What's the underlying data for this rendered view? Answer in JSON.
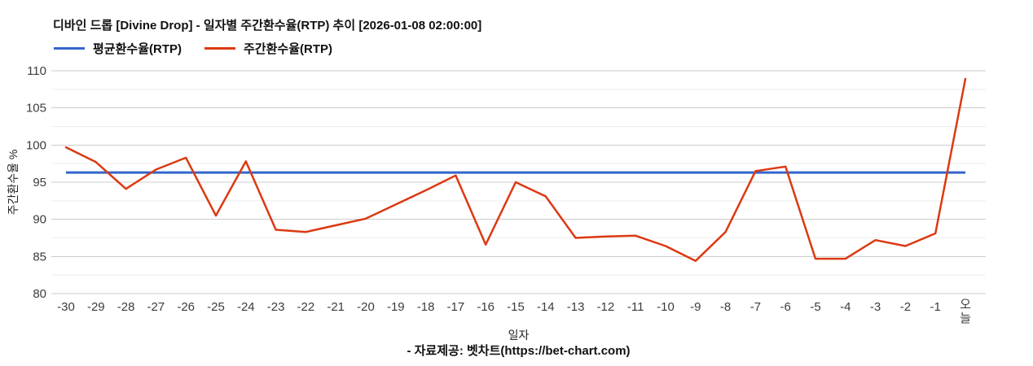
{
  "header": {
    "title": "디바인 드롭 [Divine Drop] - 일자별 주간환수율(RTP) 추이 [2026-01-08 02:00:00]"
  },
  "legend": {
    "items": [
      {
        "label": "평균환수율(RTP)",
        "color": "#3366cc"
      },
      {
        "label": "주간환수율(RTP)",
        "color": "#dc3912"
      }
    ]
  },
  "axes": {
    "y_title": "주간환수율 %",
    "x_title": "일자"
  },
  "footer": {
    "credit": "- 자료제공: 벳차트(https://bet-chart.com)"
  },
  "colors": {
    "average_line": "#3366cc",
    "weekly_line": "#dc3912",
    "grid_major": "#cccccc",
    "grid_minor": "#ededed",
    "tick_text": "#3c3c3c",
    "title_text": "#111111"
  },
  "chart_data": {
    "type": "line",
    "title": "디바인 드롭 [Divine Drop] - 일자별 주간환수율(RTP) 추이 [2026-01-08 02:00:00]",
    "xlabel": "일자",
    "ylabel": "주간환수율 %",
    "ylim": [
      80,
      110
    ],
    "ytick_step": 5,
    "ytick_minor_step": 2.5,
    "grid": true,
    "legend_position": "top-left",
    "categories": [
      "-30",
      "-29",
      "-28",
      "-27",
      "-26",
      "-25",
      "-24",
      "-23",
      "-22",
      "-21",
      "-20",
      "-19",
      "-18",
      "-17",
      "-16",
      "-15",
      "-14",
      "-13",
      "-12",
      "-11",
      "-10",
      "-9",
      "-8",
      "-7",
      "-6",
      "-5",
      "-4",
      "-3",
      "-2",
      "-1",
      "오늘"
    ],
    "series": [
      {
        "name": "평균환수율(RTP)",
        "type": "constant",
        "value": 96.3,
        "color": "#3366cc"
      },
      {
        "name": "주간환수율(RTP)",
        "type": "line",
        "color": "#dc3912",
        "values": [
          99.7,
          97.7,
          94.1,
          96.7,
          98.3,
          90.5,
          97.8,
          88.6,
          88.3,
          89.2,
          90.1,
          92.0,
          93.9,
          95.9,
          86.6,
          95.0,
          93.1,
          87.5,
          87.7,
          87.8,
          86.4,
          84.4,
          88.3,
          96.5,
          97.1,
          84.7,
          84.7,
          87.2,
          86.4,
          88.1,
          108.9
        ]
      }
    ]
  }
}
